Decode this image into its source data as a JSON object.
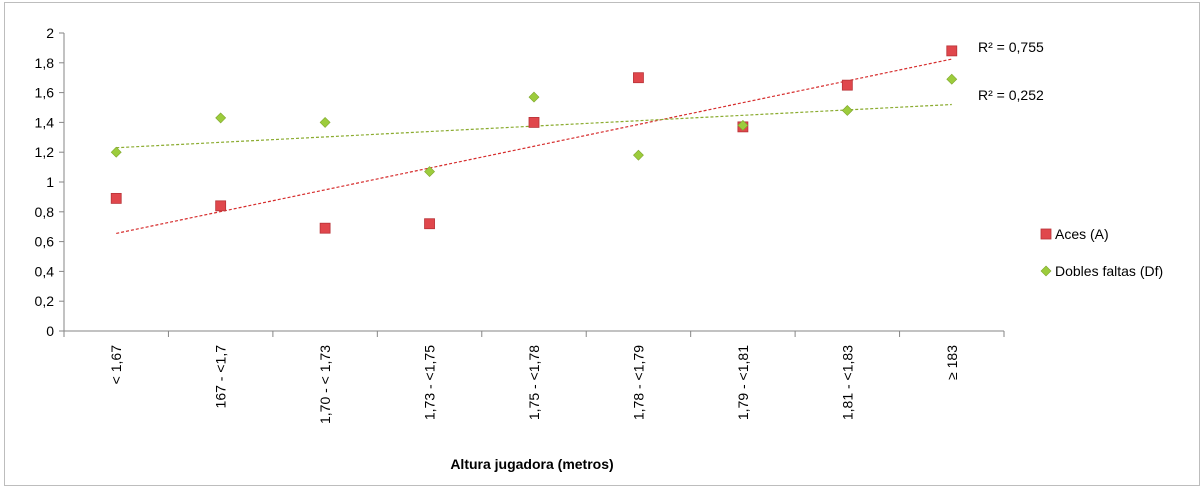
{
  "chart_data": {
    "type": "scatter",
    "title": "",
    "xlabel": "Altura jugadora (metros)",
    "ylabel": "",
    "categories": [
      "< 1,67",
      "167 - <1,7",
      "1,70 - < 1,73",
      "1,73 - <1,75",
      "1,75 - <1,78",
      "1,78 - <1,79",
      "1,79 - <1,81",
      "1,81 - <1,83",
      "≥ 183"
    ],
    "ylim": [
      0,
      2
    ],
    "yticks": [
      "0",
      "0,2",
      "0,4",
      "0,6",
      "0,8",
      "1",
      "1,2",
      "1,4",
      "1,6",
      "1,8",
      "2"
    ],
    "grid": false,
    "legend_position": "right",
    "series": [
      {
        "name": "Aces (A)",
        "marker": "square",
        "color": "#e0474c",
        "values": [
          0.89,
          0.84,
          0.69,
          0.72,
          1.4,
          1.7,
          1.37,
          1.65,
          1.88
        ],
        "trendline": {
          "type": "linear",
          "start": 0.655,
          "end": 1.825,
          "color": "#d62d2d",
          "r2_label": "R² = 0,755"
        }
      },
      {
        "name": "Dobles faltas (Df)",
        "marker": "diamond",
        "color": "#9ccc3c",
        "values": [
          1.2,
          1.43,
          1.4,
          1.07,
          1.57,
          1.18,
          1.38,
          1.48,
          1.69
        ],
        "trendline": {
          "type": "linear",
          "start": 1.23,
          "end": 1.52,
          "color": "#8aab2e",
          "r2_label": "R² = 0,252"
        }
      }
    ]
  }
}
